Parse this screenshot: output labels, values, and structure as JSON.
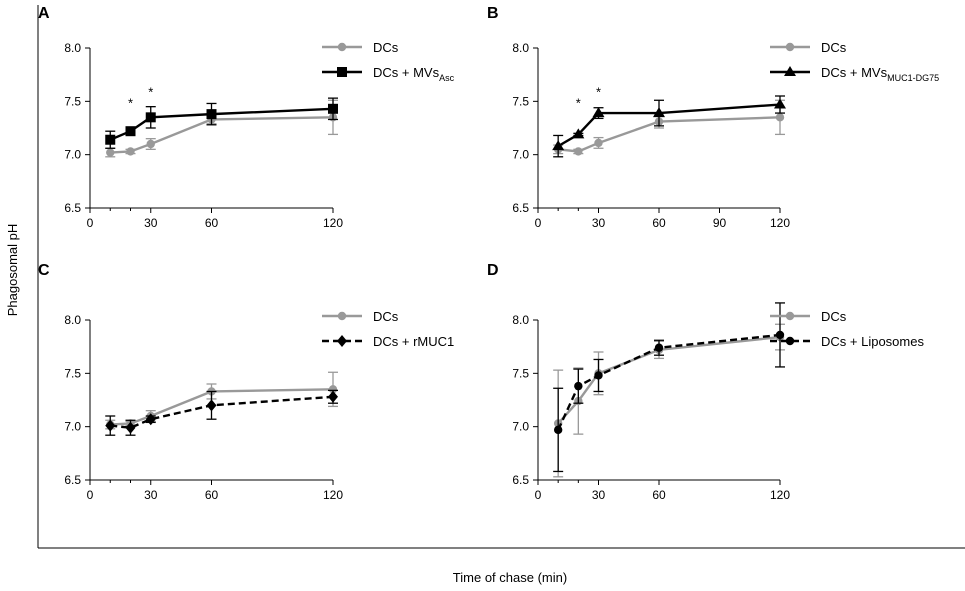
{
  "figure": {
    "ylabel": "Phagosomal pH",
    "xlabel": "Time of chase (min)"
  },
  "chart_data": [
    {
      "type": "line",
      "panel": "A",
      "x_ticks": [
        0,
        30,
        60,
        120
      ],
      "y_ticks": [
        "6.5",
        "7.0",
        "7.5",
        "8.0"
      ],
      "xlim": [
        0,
        120
      ],
      "ylim": [
        6.5,
        8.0
      ],
      "legend_position": "top-right",
      "annotations": [
        {
          "text": "*",
          "x": 20,
          "y": 7.5
        },
        {
          "text": "*",
          "x": 30,
          "y": 7.6
        }
      ],
      "series": [
        {
          "name": "DCs",
          "color": "#999999",
          "dashed": false,
          "marker": "circle",
          "x": [
            10,
            20,
            30,
            60,
            120
          ],
          "values": [
            7.02,
            7.03,
            7.1,
            7.33,
            7.35
          ],
          "errors": [
            0.04,
            0.02,
            0.05,
            0.04,
            0.16
          ]
        },
        {
          "name": "DCs + MVs",
          "subscript": "Asc",
          "color": "#000000",
          "dashed": false,
          "marker": "square",
          "x": [
            10,
            20,
            30,
            60,
            120
          ],
          "values": [
            7.14,
            7.22,
            7.35,
            7.38,
            7.43
          ],
          "errors": [
            0.08,
            0.02,
            0.1,
            0.1,
            0.1
          ]
        }
      ]
    },
    {
      "type": "line",
      "panel": "B",
      "x_ticks": [
        0,
        30,
        60,
        90,
        120
      ],
      "y_ticks": [
        "6.5",
        "7.0",
        "7.5",
        "8.0"
      ],
      "xlim": [
        0,
        120
      ],
      "ylim": [
        6.5,
        8.0
      ],
      "legend_position": "top-right",
      "annotations": [
        {
          "text": "*",
          "x": 20,
          "y": 7.5
        },
        {
          "text": "*",
          "x": 30,
          "y": 7.6
        }
      ],
      "series": [
        {
          "name": "DCs",
          "color": "#999999",
          "dashed": false,
          "marker": "circle",
          "x": [
            10,
            20,
            30,
            60,
            120
          ],
          "values": [
            7.05,
            7.03,
            7.11,
            7.31,
            7.35
          ],
          "errors": [
            0.04,
            0.02,
            0.05,
            0.06,
            0.16
          ]
        },
        {
          "name": "DCs + MVs",
          "subscript": "MUC1-DG75",
          "color": "#000000",
          "dashed": false,
          "marker": "triangle",
          "x": [
            10,
            20,
            30,
            60,
            120
          ],
          "values": [
            7.08,
            7.19,
            7.39,
            7.39,
            7.47
          ],
          "errors": [
            0.1,
            0.01,
            0.05,
            0.12,
            0.08
          ]
        }
      ]
    },
    {
      "type": "line",
      "panel": "C",
      "x_ticks": [
        0,
        30,
        60,
        120
      ],
      "y_ticks": [
        "6.5",
        "7.0",
        "7.5",
        "8.0"
      ],
      "xlim": [
        0,
        120
      ],
      "ylim": [
        6.5,
        8.0
      ],
      "legend_position": "top-right",
      "annotations": [],
      "series": [
        {
          "name": "DCs",
          "color": "#999999",
          "dashed": false,
          "marker": "circle",
          "x": [
            10,
            20,
            30,
            60,
            120
          ],
          "values": [
            7.02,
            7.03,
            7.1,
            7.33,
            7.35
          ],
          "errors": [
            0.04,
            0.02,
            0.05,
            0.07,
            0.16
          ]
        },
        {
          "name": "DCs + rMUC1",
          "color": "#000000",
          "dashed": true,
          "marker": "diamond",
          "x": [
            10,
            20,
            30,
            60,
            120
          ],
          "values": [
            7.01,
            6.99,
            7.07,
            7.2,
            7.28
          ],
          "errors": [
            0.09,
            0.07,
            0.03,
            0.13,
            0.06
          ]
        }
      ]
    },
    {
      "type": "line",
      "panel": "D",
      "x_ticks": [
        0,
        30,
        60,
        120
      ],
      "y_ticks": [
        "6.5",
        "7.0",
        "7.5",
        "8.0"
      ],
      "xlim": [
        0,
        120
      ],
      "ylim": [
        6.5,
        8.0
      ],
      "legend_position": "top-right",
      "annotations": [],
      "series": [
        {
          "name": "DCs",
          "color": "#999999",
          "dashed": false,
          "marker": "circle",
          "x": [
            10,
            20,
            30,
            60,
            120
          ],
          "values": [
            7.03,
            7.24,
            7.5,
            7.72,
            7.84
          ],
          "errors": [
            0.5,
            0.31,
            0.2,
            0.08,
            0.12
          ]
        },
        {
          "name": "DCs + Liposomes",
          "color": "#000000",
          "dashed": true,
          "marker": "circle",
          "x": [
            10,
            20,
            30,
            60,
            120
          ],
          "values": [
            6.97,
            7.38,
            7.48,
            7.74,
            7.86
          ],
          "errors": [
            0.39,
            0.16,
            0.15,
            0.07,
            0.3
          ]
        }
      ]
    }
  ]
}
